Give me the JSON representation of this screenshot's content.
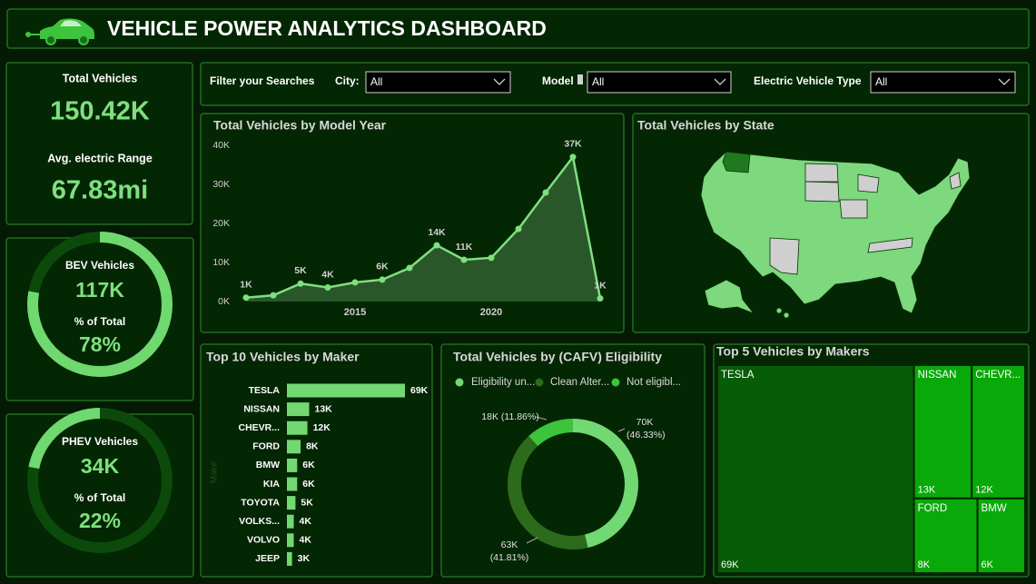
{
  "header": {
    "title": "VEHICLE POWER ANALYTICS DASHBOARD"
  },
  "kpis": [
    {
      "label": "Total Vehicles",
      "value": "150.42K"
    },
    {
      "label": "Avg. electric Range",
      "value": "67.83mi"
    }
  ],
  "rings": [
    {
      "label": "BEV Vehicles",
      "value": "117K",
      "share_label": "% of Total",
      "share": 78,
      "share_text": "78%"
    },
    {
      "label": "PHEV Vehicles",
      "value": "34K",
      "share_label": "% of Total",
      "share": 22,
      "share_text": "22%"
    }
  ],
  "filters": {
    "title": "Filter your Searches",
    "fields": [
      {
        "label": "City:",
        "value": "All"
      },
      {
        "label": "Model",
        "value": "All"
      },
      {
        "label": "Electric Vehicle Type",
        "value": "All"
      }
    ]
  },
  "chart_data": [
    {
      "type": "line",
      "title": "Total Vehicles by Model Year",
      "x": [
        2011,
        2012,
        2013,
        2014,
        2015,
        2016,
        2017,
        2018,
        2019,
        2020,
        2021,
        2022,
        2023,
        2024
      ],
      "values": [
        1000,
        1600,
        4600,
        3600,
        4900,
        5600,
        8600,
        14400,
        10700,
        11200,
        18600,
        27900,
        37000,
        800
      ],
      "value_labels": [
        "1K",
        null,
        "5K",
        "4K",
        null,
        "6K",
        null,
        "14K",
        "11K",
        null,
        null,
        null,
        "37K",
        "1K"
      ],
      "color": "#7ee07e",
      "area_color": "#2a572a",
      "xlim": [
        2010.5,
        2024.5
      ],
      "xticks": [
        2015,
        2020
      ],
      "ylim": [
        0,
        40000
      ],
      "yticks": [
        {
          "value": 0,
          "label": "0K"
        },
        {
          "value": 10000,
          "label": "10K"
        },
        {
          "value": 20000,
          "label": "20K"
        },
        {
          "value": 30000,
          "label": "30K"
        },
        {
          "value": 40000,
          "label": "40K"
        }
      ]
    },
    {
      "type": "map",
      "title": "Total Vehicles by State"
    },
    {
      "type": "bar",
      "title": "Top 10 Vehicles by Maker",
      "y_label": "Make",
      "categories": [
        "TESLA",
        "NISSAN",
        "CHEVR...",
        "FORD",
        "BMW",
        "KIA",
        "TOYOTA",
        "VOLKS...",
        "VOLVO",
        "JEEP"
      ],
      "values": [
        69000,
        13000,
        12000,
        8000,
        6000,
        6000,
        5000,
        4000,
        4000,
        3000
      ],
      "value_labels": [
        "69K",
        "13K",
        "12K",
        "8K",
        "6K",
        "6K",
        "5K",
        "4K",
        "4K",
        "3K"
      ],
      "color": "#72d872"
    },
    {
      "type": "pie",
      "donut": true,
      "title": "Total Vehicles by (CAFV) Eligibility",
      "categories": [
        "Eligibility un...",
        "Clean Alter...",
        "Not eligibl..."
      ],
      "values": [
        69690,
        62890,
        17840
      ],
      "value_labels": [
        "70K (46.33%)",
        "63K (41.81%)",
        "18K (11.86%)"
      ],
      "colors": [
        "#72d872",
        "#2c6a1c",
        "#3cc43c"
      ]
    },
    {
      "type": "treemap",
      "title": "Top 5 Vehicles by Makers",
      "categories": [
        "TESLA",
        "NISSAN",
        "CHEVR...",
        "FORD",
        "BMW"
      ],
      "values": [
        69000,
        13000,
        12000,
        8000,
        6000
      ],
      "value_labels": [
        "69K",
        "13K",
        "12K",
        "8K",
        "6K"
      ],
      "colors": [
        "#075c07",
        "#09a909",
        "#09a909",
        "#09a909",
        "#09a909"
      ]
    }
  ]
}
